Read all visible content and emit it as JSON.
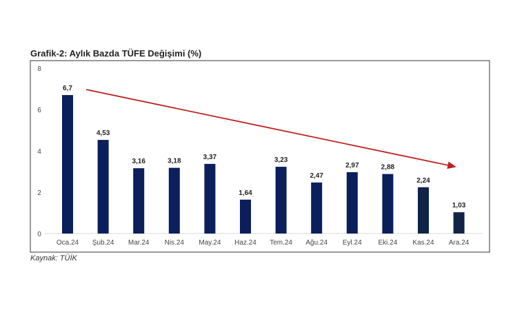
{
  "chart_data": {
    "type": "bar",
    "title": "Grafik-2: Aylık Bazda TÜFE Değişimi (%)",
    "source": "Kaynak: TÜİK",
    "categories": [
      "Oca.24",
      "Şub.24",
      "Mar.24",
      "Nis.24",
      "May.24",
      "Haz.24",
      "Tem.24",
      "Ağu.24",
      "Eyl.24",
      "Eki.24",
      "Kas.24",
      "Ara.24"
    ],
    "values": [
      6.7,
      4.53,
      3.16,
      3.18,
      3.37,
      1.64,
      3.23,
      2.47,
      2.97,
      2.88,
      2.24,
      1.03
    ],
    "data_labels": [
      "6,7",
      "4,53",
      "3,16",
      "3,18",
      "3,37",
      "1,64",
      "3,23",
      "2,47",
      "2,97",
      "2,88",
      "2,24",
      "1,03"
    ],
    "yticks": [
      0,
      2,
      4,
      6,
      8
    ],
    "ylim": [
      0,
      8
    ],
    "grid": false,
    "colors": {
      "bar": "#0b1f5c",
      "bar_recent": "#102447",
      "trend_arrow": "#c0201e"
    },
    "annotation": "downward trend arrow"
  }
}
